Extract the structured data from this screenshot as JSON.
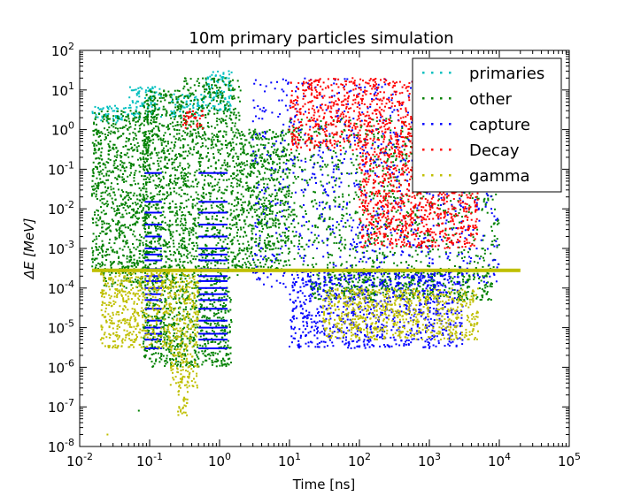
{
  "chart_data": {
    "type": "scatter",
    "title": "10m primary particles simulation",
    "xlabel": "Time [ns]",
    "ylabel": "ΔE [MeV]",
    "xscale": "log",
    "yscale": "log",
    "xlim": [
      0.01,
      100000
    ],
    "ylim": [
      1e-08,
      100
    ],
    "grid": false,
    "legend_position": "top-right",
    "x_ticks": [
      {
        "base": "10",
        "exp": "-2"
      },
      {
        "base": "10",
        "exp": "-1"
      },
      {
        "base": "10",
        "exp": "0"
      },
      {
        "base": "10",
        "exp": "1"
      },
      {
        "base": "10",
        "exp": "2"
      },
      {
        "base": "10",
        "exp": "3"
      },
      {
        "base": "10",
        "exp": "4"
      },
      {
        "base": "10",
        "exp": "5"
      }
    ],
    "y_ticks": [
      {
        "base": "10",
        "exp": "-8"
      },
      {
        "base": "10",
        "exp": "-7"
      },
      {
        "base": "10",
        "exp": "-6"
      },
      {
        "base": "10",
        "exp": "-5"
      },
      {
        "base": "10",
        "exp": "-4"
      },
      {
        "base": "10",
        "exp": "-3"
      },
      {
        "base": "10",
        "exp": "-2"
      },
      {
        "base": "10",
        "exp": "-1"
      },
      {
        "base": "10",
        "exp": "0"
      },
      {
        "base": "10",
        "exp": "1"
      },
      {
        "base": "10",
        "exp": "2"
      }
    ],
    "series": [
      {
        "name": "primaries",
        "color": "#00bfbf",
        "regions": [
          {
            "x": [
              0.015,
              0.05
            ],
            "y": [
              1.5,
              4
            ]
          },
          {
            "x": [
              0.05,
              0.15
            ],
            "y": [
              2,
              12
            ]
          },
          {
            "x": [
              0.2,
              0.6
            ],
            "y": [
              2,
              8
            ]
          },
          {
            "x": [
              0.6,
              1.5
            ],
            "y": [
              3,
              30
            ]
          }
        ]
      },
      {
        "name": "other",
        "color": "#008000",
        "regions": [
          {
            "x": [
              0.015,
              0.1
            ],
            "y": [
              0.0003,
              3
            ]
          },
          {
            "x": [
              0.02,
              0.08
            ],
            "y": [
              0.0001,
              0.0003
            ]
          },
          {
            "x": [
              0.08,
              0.3
            ],
            "y": [
              0.0002,
              10
            ]
          },
          {
            "x": [
              0.3,
              2
            ],
            "y": [
              0.0002,
              20
            ]
          },
          {
            "x": [
              0.08,
              1.5
            ],
            "y": [
              1e-06,
              0.0002
            ]
          },
          {
            "x": [
              2,
              10
            ],
            "y": [
              0.0003,
              1
            ]
          },
          {
            "x": [
              10,
              10000
            ],
            "y": [
              0.0003,
              2
            ]
          },
          {
            "x": [
              20,
              8000
            ],
            "y": [
              5e-05,
              0.0003
            ]
          },
          {
            "x": [
              0.07,
              0.07
            ],
            "y": [
              8e-08,
              8e-08
            ]
          }
        ]
      },
      {
        "name": "capture",
        "color": "#0000ff",
        "bands_x": [
          [
            0.085,
            0.15
          ],
          [
            0.5,
            1.3
          ]
        ],
        "bands_y": [
          0.08,
          0.015,
          0.008,
          0.004,
          0.002,
          0.001,
          0.0007,
          0.0005,
          0.0003,
          0.0002,
          0.00015,
          0.0001,
          7e-05,
          5e-05,
          3e-05,
          1.5e-05,
          1e-05,
          7e-06,
          5e-06,
          3e-06
        ],
        "regions": [
          {
            "x": [
              3,
              10000
            ],
            "y": [
              0.0001,
              20
            ]
          },
          {
            "x": [
              10,
              3000
            ],
            "y": [
              3e-06,
              0.0003
            ]
          }
        ]
      },
      {
        "name": "Decay",
        "color": "#ff0000",
        "regions": [
          {
            "x": [
              0.3,
              0.6
            ],
            "y": [
              1,
              3
            ]
          },
          {
            "x": [
              10,
              3000
            ],
            "y": [
              0.3,
              20
            ]
          },
          {
            "x": [
              100,
              5000
            ],
            "y": [
              0.001,
              0.3
            ]
          }
        ]
      },
      {
        "name": "gamma",
        "color": "#bfbf00",
        "band": {
          "x": [
            0.015,
            20000
          ],
          "y": 0.00028
        },
        "regions": [
          {
            "x": [
              0.02,
              0.2
            ],
            "y": [
              3e-06,
              0.00025
            ]
          },
          {
            "x": [
              0.2,
              0.5
            ],
            "y": [
              3e-07,
              0.00025
            ]
          },
          {
            "x": [
              0.25,
              0.35
            ],
            "y": [
              6e-08,
              3e-07
            ]
          },
          {
            "x": [
              30,
              5000
            ],
            "y": [
              5e-06,
              0.0001
            ]
          },
          {
            "x": [
              0.025,
              0.025
            ],
            "y": [
              2e-08,
              2e-08
            ]
          }
        ]
      }
    ]
  }
}
